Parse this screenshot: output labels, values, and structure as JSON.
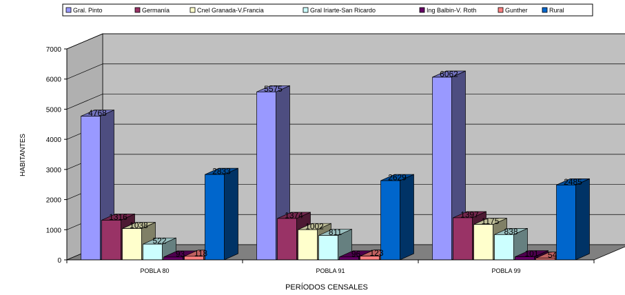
{
  "chart_data": {
    "type": "bar",
    "title": "",
    "xlabel": "PERÍODOS CENSALES",
    "ylabel": "HABITANTES",
    "categories": [
      "POBLA 80",
      "POBLA 91",
      "POBLA 99"
    ],
    "ylim": [
      0,
      7000
    ],
    "yticks": [
      "0",
      "1000",
      "2000",
      "3000",
      "4000",
      "5000",
      "6000",
      "7000"
    ],
    "grid": true,
    "legend_position": "top",
    "three_d": true,
    "series": [
      {
        "name": "Gral. Pinto",
        "color": "#9999ff",
        "values": [
          4768,
          5575,
          6062
        ],
        "labels": [
          "4768",
          "5575",
          "6062"
        ]
      },
      {
        "name": "Germanía",
        "color": "#993366",
        "values": [
          1316,
          1374,
          1397
        ],
        "labels": [
          "1316",
          "1374",
          "1397"
        ]
      },
      {
        "name": "Cnel Granada-V.Francia",
        "color": "#ffffcc",
        "values": [
          1038,
          1002,
          1175
        ],
        "labels": [
          "1038",
          "1002",
          "1175"
        ]
      },
      {
        "name": "Gral Iriarte-San Ricardo",
        "color": "#ccffff",
        "values": [
          522,
          811,
          838
        ],
        "labels": [
          "522",
          "811",
          "838"
        ]
      },
      {
        "name": "Ing Balbin-V. Roth",
        "color": "#660066",
        "values": [
          93,
          96,
          101
        ],
        "labels": [
          "93",
          "96",
          "101"
        ]
      },
      {
        "name": "Gunther",
        "color": "#ff8080",
        "values": [
          118,
          123,
          54
        ],
        "labels": [
          "118",
          "123",
          "54"
        ]
      },
      {
        "name": "Rural",
        "color": "#0066cc",
        "values": [
          2833,
          2629,
          2485
        ],
        "labels": [
          "2833",
          "2629",
          "2485"
        ]
      }
    ]
  }
}
